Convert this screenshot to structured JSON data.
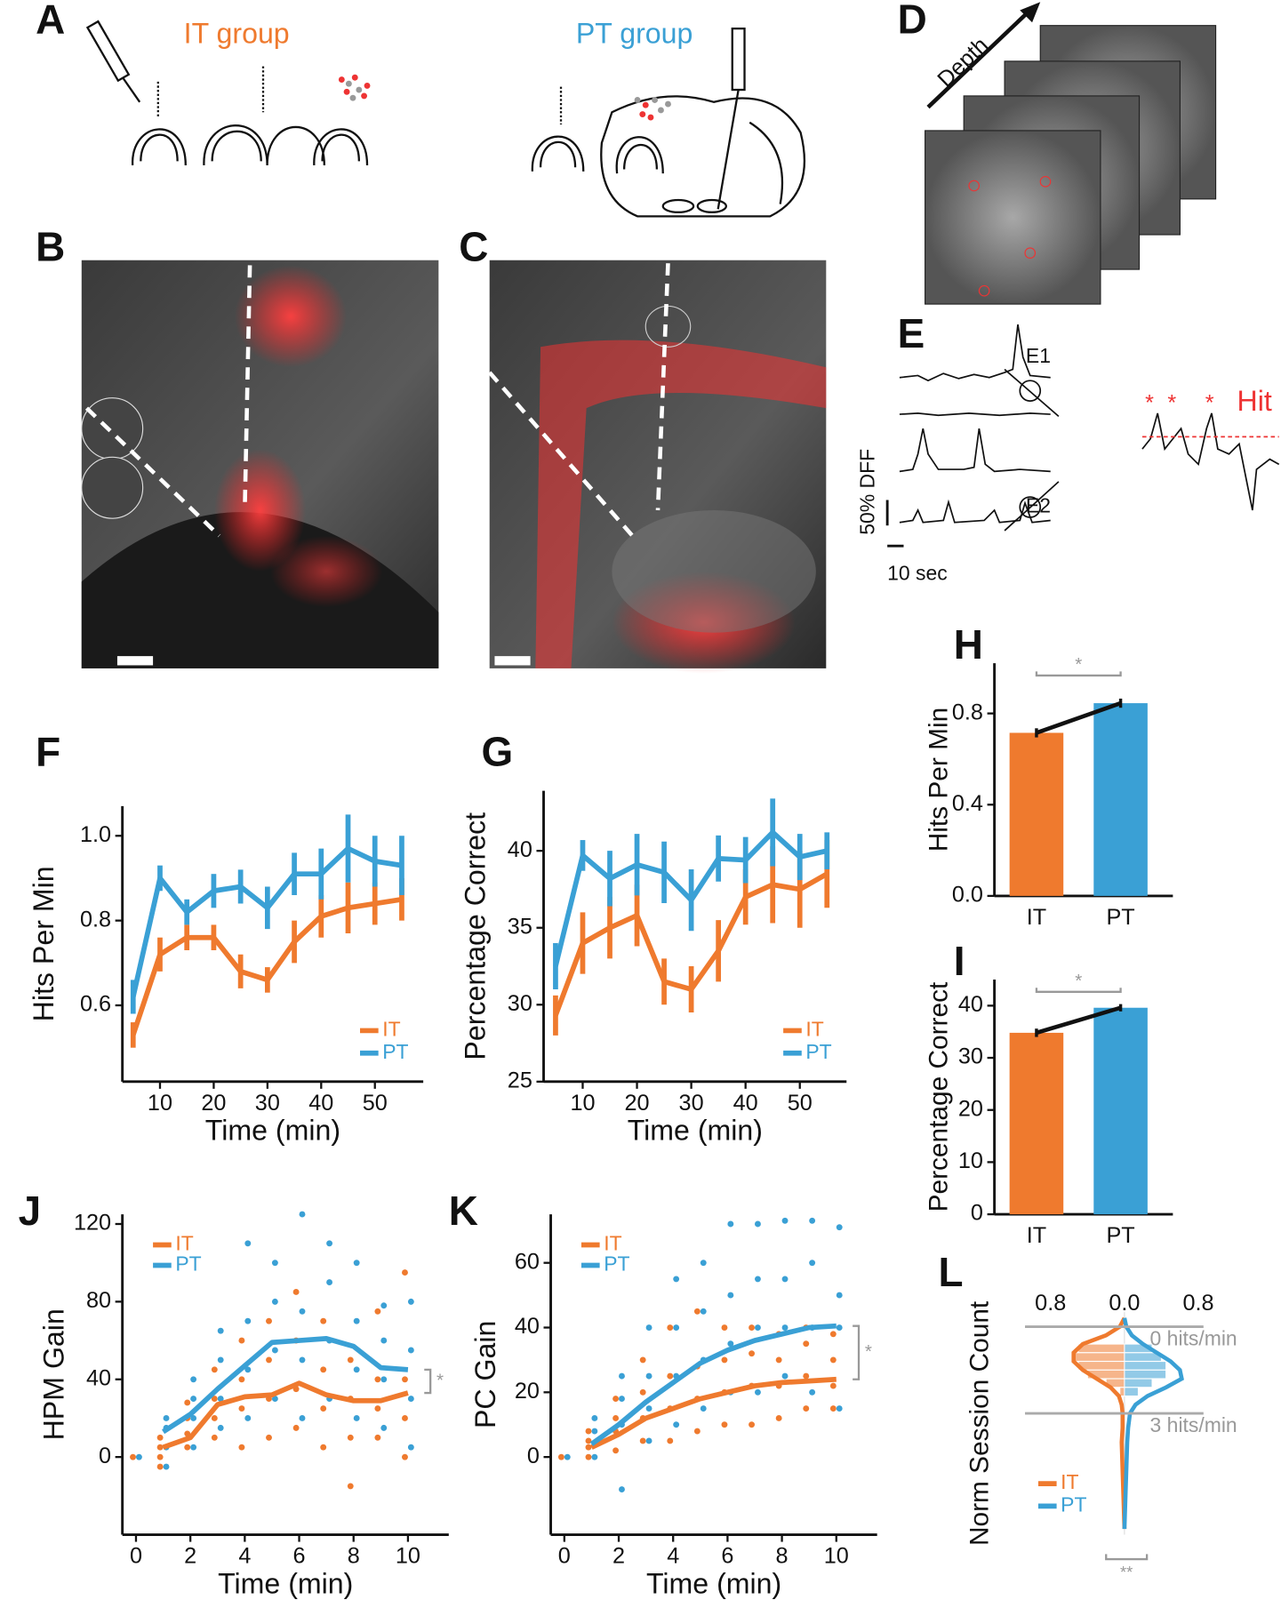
{
  "illustrations": {
    "A": {
      "panel": "A",
      "it_label": "IT group",
      "pt_label": "PT group"
    },
    "B": {
      "panel": "B"
    },
    "C": {
      "panel": "C"
    },
    "D": {
      "panel": "D",
      "axis_label": "Depth"
    },
    "E": {
      "panel": "E",
      "electrode_1": "E1",
      "electrode_2": "E2",
      "hit_label": "Hit",
      "hit_marker": "*",
      "y_scale_label": "50% DFF",
      "x_scale_label": "10 sec"
    }
  },
  "chart_data": [
    {
      "panel": "F",
      "type": "line",
      "xlabel": "Time (min)",
      "ylabel": "Hits Per Min",
      "x": [
        5,
        10,
        15,
        20,
        25,
        30,
        35,
        40,
        45,
        50,
        55
      ],
      "xlim": [
        3,
        59
      ],
      "xticks": [
        10,
        20,
        30,
        40,
        50
      ],
      "ylim": [
        0.42,
        1.07
      ],
      "yticks": [
        0.6,
        0.8,
        {
          "value": 1.0,
          "label": "1.0"
        }
      ],
      "legend_position": "lower right",
      "series": [
        {
          "name": "IT",
          "color": "#ef7a2e",
          "values": [
            0.53,
            0.72,
            0.76,
            0.76,
            0.68,
            0.66,
            0.75,
            0.81,
            0.83,
            0.84,
            0.85
          ],
          "errors": [
            0.03,
            0.04,
            0.03,
            0.03,
            0.04,
            0.03,
            0.05,
            0.05,
            0.06,
            0.05,
            0.05
          ]
        },
        {
          "name": "PT",
          "color": "#3aa0d5",
          "values": [
            0.62,
            0.9,
            0.82,
            0.87,
            0.88,
            0.83,
            0.91,
            0.91,
            0.97,
            0.94,
            0.93
          ],
          "errors": [
            0.04,
            0.03,
            0.03,
            0.04,
            0.04,
            0.05,
            0.05,
            0.06,
            0.08,
            0.06,
            0.07
          ]
        }
      ]
    },
    {
      "panel": "G",
      "type": "line",
      "xlabel": "Time (min)",
      "ylabel": "Percentage Correct",
      "x": [
        5,
        10,
        15,
        20,
        25,
        30,
        35,
        40,
        45,
        50,
        55
      ],
      "xlim": [
        2.8,
        58.6
      ],
      "xticks": [
        10,
        20,
        30,
        40,
        50
      ],
      "ylim": [
        25,
        43.9
      ],
      "yticks": [
        25,
        30,
        35,
        40
      ],
      "legend_position": "lower right",
      "series": [
        {
          "name": "IT",
          "color": "#ef7a2e",
          "values": [
            29.3,
            34,
            35,
            35.8,
            31.5,
            31,
            33.5,
            37,
            37.8,
            37.5,
            38.5
          ],
          "errors": [
            1.3,
            2,
            2,
            2,
            1.5,
            1.5,
            2,
            1.8,
            2.5,
            2.5,
            2.2
          ]
        },
        {
          "name": "PT",
          "color": "#3aa0d5",
          "values": [
            32.5,
            39.7,
            38.2,
            39.1,
            38.6,
            36.8,
            39.5,
            39.4,
            41.2,
            39.6,
            40
          ],
          "errors": [
            1.5,
            1,
            1.8,
            2,
            2,
            2,
            1.5,
            1.5,
            2.2,
            1.5,
            1.2
          ]
        }
      ]
    },
    {
      "panel": "H",
      "type": "bar",
      "ylabel": "Hits Per Min",
      "categories": [
        "IT",
        "PT"
      ],
      "colors": [
        "#ef7a2e",
        "#3aa0d5"
      ],
      "values": [
        0.715,
        0.845
      ],
      "errors": [
        0.02,
        0.02
      ],
      "ylim": [
        0,
        1.02
      ],
      "yticks": [
        {
          "value": 0,
          "label": "0.0"
        },
        0.4,
        0.8
      ],
      "significance": "*"
    },
    {
      "panel": "I",
      "type": "bar",
      "ylabel": "Percentage Correct",
      "categories": [
        "IT",
        "PT"
      ],
      "colors": [
        "#ef7a2e",
        "#3aa0d5"
      ],
      "values": [
        34.8,
        39.6
      ],
      "errors": [
        0.8,
        0.7
      ],
      "ylim": [
        0,
        45
      ],
      "yticks": [
        0,
        10,
        20,
        30,
        40
      ],
      "significance": "*"
    },
    {
      "panel": "J",
      "type": "scatter_line",
      "xlabel": "Time (min)",
      "ylabel": "HPM Gain",
      "xlim": [
        -0.5,
        11.5
      ],
      "xticks": [
        0,
        2,
        4,
        6,
        8,
        10
      ],
      "ylim": [
        -40,
        125
      ],
      "yticks": [
        0,
        40,
        80,
        120
      ],
      "legend_position": "upper left",
      "significance": "*",
      "series": [
        {
          "name": "IT",
          "color": "#ef7a2e",
          "x": [
            1,
            2,
            3,
            4,
            5,
            6,
            7,
            8,
            9,
            10
          ],
          "values": [
            5,
            10,
            27,
            31,
            32,
            38,
            32,
            29,
            29,
            33
          ],
          "points_x": [
            0,
            1,
            1,
            1,
            1,
            2,
            2,
            2,
            2,
            3,
            3,
            3,
            3,
            4,
            4,
            4,
            4,
            5,
            5,
            5,
            5,
            6,
            6,
            6,
            6,
            7,
            7,
            7,
            7,
            8,
            8,
            8,
            8,
            9,
            9,
            9,
            9,
            10,
            10,
            10,
            10
          ],
          "points_y": [
            0,
            -5,
            0,
            5,
            10,
            5,
            12,
            20,
            28,
            10,
            20,
            30,
            45,
            5,
            25,
            40,
            60,
            10,
            30,
            50,
            70,
            15,
            35,
            60,
            85,
            5,
            25,
            45,
            70,
            -15,
            10,
            30,
            50,
            10,
            25,
            40,
            75,
            0,
            20,
            40,
            95
          ]
        },
        {
          "name": "PT",
          "color": "#3aa0d5",
          "x": [
            1,
            2,
            3,
            4,
            5,
            6,
            7,
            8,
            9,
            10
          ],
          "values": [
            13,
            22,
            35,
            47,
            59,
            60,
            61,
            57,
            46,
            45
          ],
          "points_x": [
            0,
            1,
            1,
            1,
            1,
            2,
            2,
            2,
            2,
            3,
            3,
            3,
            3,
            4,
            4,
            4,
            4,
            5,
            5,
            5,
            5,
            6,
            6,
            6,
            6,
            7,
            7,
            7,
            7,
            8,
            8,
            8,
            8,
            9,
            9,
            9,
            9,
            10,
            10,
            10,
            10
          ],
          "points_y": [
            0,
            -5,
            5,
            15,
            20,
            5,
            20,
            30,
            40,
            15,
            30,
            50,
            65,
            20,
            45,
            70,
            110,
            30,
            55,
            80,
            100,
            20,
            50,
            75,
            125,
            30,
            60,
            90,
            110,
            20,
            45,
            70,
            100,
            15,
            40,
            60,
            78,
            5,
            30,
            55,
            80
          ]
        }
      ]
    },
    {
      "panel": "K",
      "type": "scatter_line",
      "xlabel": "Time (min)",
      "ylabel": "PC Gain",
      "xlim": [
        -0.5,
        11.5
      ],
      "xticks": [
        0,
        2,
        4,
        6,
        8,
        10
      ],
      "ylim": [
        -24,
        75
      ],
      "yticks": [
        0,
        20,
        40,
        60
      ],
      "legend_position": "upper left",
      "significance": "*",
      "series": [
        {
          "name": "IT",
          "color": "#ef7a2e",
          "x": [
            1,
            2,
            3,
            4,
            5,
            6,
            7,
            8,
            9,
            10
          ],
          "values": [
            3,
            7,
            12,
            15,
            18,
            20,
            22,
            23,
            23.5,
            24
          ],
          "points_x": [
            0,
            1,
            1,
            1,
            1,
            2,
            2,
            2,
            2,
            3,
            3,
            3,
            3,
            4,
            4,
            4,
            4,
            5,
            5,
            5,
            5,
            6,
            6,
            6,
            6,
            7,
            7,
            7,
            7,
            8,
            8,
            8,
            8,
            9,
            9,
            9,
            9,
            10,
            10,
            10,
            10
          ],
          "points_y": [
            0,
            0,
            3,
            5,
            8,
            2,
            8,
            12,
            18,
            5,
            12,
            20,
            30,
            5,
            15,
            25,
            40,
            8,
            18,
            28,
            45,
            10,
            20,
            30,
            40,
            10,
            22,
            32,
            40,
            12,
            22,
            30,
            38,
            15,
            25,
            35,
            40,
            15,
            22,
            30,
            38
          ]
        },
        {
          "name": "PT",
          "color": "#3aa0d5",
          "x": [
            1,
            2,
            3,
            4,
            5,
            6,
            7,
            8,
            9,
            10
          ],
          "values": [
            4,
            10,
            17,
            23,
            29,
            33,
            36,
            38,
            40,
            40.5
          ],
          "points_x": [
            0,
            1,
            1,
            1,
            1,
            2,
            2,
            2,
            2,
            3,
            3,
            3,
            3,
            4,
            4,
            4,
            4,
            5,
            5,
            5,
            5,
            6,
            6,
            6,
            6,
            7,
            7,
            7,
            7,
            8,
            8,
            8,
            8,
            9,
            9,
            9,
            9,
            10,
            10,
            10,
            10
          ],
          "points_y": [
            0,
            0,
            4,
            8,
            12,
            -10,
            10,
            18,
            25,
            5,
            15,
            25,
            40,
            10,
            25,
            40,
            55,
            15,
            30,
            45,
            60,
            20,
            35,
            50,
            72,
            20,
            40,
            55,
            72,
            25,
            40,
            55,
            73,
            20,
            40,
            60,
            73,
            15,
            40,
            50,
            71
          ]
        }
      ]
    },
    {
      "panel": "L",
      "type": "violin",
      "ylabel": "Norm Session Count",
      "xlim": [
        -0.8,
        0.8
      ],
      "xticks": [
        {
          "value": -0.8,
          "label": "0.8"
        },
        {
          "value": 0,
          "label": "0.0"
        },
        0.8
      ],
      "ylim": [
        -0.5,
        7.2
      ],
      "reference_lines": [
        {
          "value": 0,
          "label": "0 hits/min"
        },
        {
          "value": 3,
          "label": "3 hits/min"
        }
      ],
      "y": [
        -0.3,
        0,
        0.3,
        0.6,
        0.9,
        1.2,
        1.5,
        1.8,
        2.1,
        2.4,
        2.7,
        3.0,
        3.5,
        4,
        5,
        6,
        7
      ],
      "bins": [
        0.6,
        0.9,
        1.2,
        1.5,
        1.8,
        2.1,
        2.4
      ],
      "legend_position": "lower left",
      "significance": "**",
      "series": [
        {
          "name": "IT",
          "color": "#ef7a2e",
          "side": "left",
          "density": [
            0,
            0.05,
            0.2,
            0.45,
            0.55,
            0.55,
            0.45,
            0.3,
            0.15,
            0.06,
            0.03,
            0.02,
            0.02,
            0.03,
            0.02,
            0.01,
            0
          ],
          "counts": [
            0.5,
            0.55,
            0.5,
            0.4,
            0.2,
            0.05
          ]
        },
        {
          "name": "PT",
          "color": "#3aa0d5",
          "side": "right",
          "density": [
            0,
            0.02,
            0.08,
            0.2,
            0.35,
            0.5,
            0.6,
            0.62,
            0.45,
            0.25,
            0.12,
            0.06,
            0.04,
            0.03,
            0.02,
            0.01,
            0
          ],
          "counts": [
            0.3,
            0.4,
            0.45,
            0.45,
            0.3,
            0.15
          ]
        }
      ]
    }
  ]
}
